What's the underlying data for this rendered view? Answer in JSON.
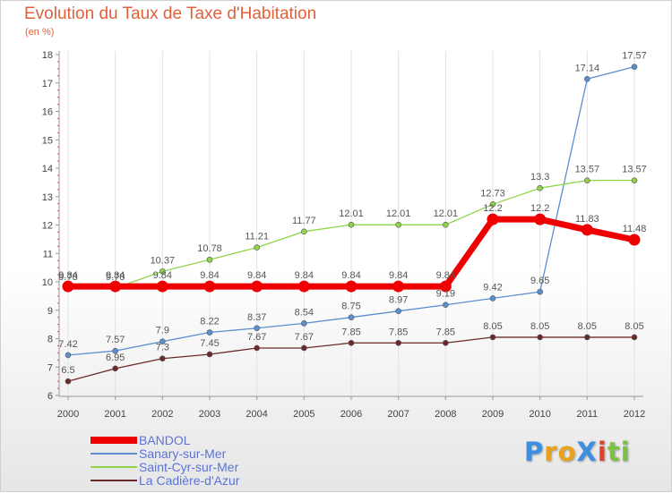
{
  "title": "Evolution du Taux de Taxe d'Habitation",
  "subtitle": "(en %)",
  "logo": {
    "text": "ProXiti",
    "letters": [
      {
        "ch": "P",
        "color": "#3b8ee0"
      },
      {
        "ch": "r",
        "color": "#e8a21e"
      },
      {
        "ch": "o",
        "color": "#e8a21e"
      },
      {
        "ch": "X",
        "color": "#3b8ee0"
      },
      {
        "ch": "i",
        "color": "#e2402c"
      },
      {
        "ch": "t",
        "color": "#7cc242"
      },
      {
        "ch": "i",
        "color": "#7cc242"
      }
    ]
  },
  "chart_data": {
    "type": "line",
    "title": "Evolution du Taux de Taxe d'Habitation",
    "ylabel": "(en %)",
    "x": [
      "2000",
      "2001",
      "2002",
      "2003",
      "2004",
      "2005",
      "2006",
      "2007",
      "2008",
      "2009",
      "2010",
      "2011",
      "2012"
    ],
    "ylim": [
      6,
      18
    ],
    "yticks": [
      "6",
      "7",
      "8",
      "9",
      "10",
      "11",
      "12",
      "13",
      "14",
      "15",
      "16",
      "17",
      "18"
    ],
    "legend_position": "bottom-left",
    "series": [
      {
        "name": "BANDOL",
        "color": "#ee0000",
        "values": [
          9.84,
          9.84,
          9.84,
          9.84,
          9.84,
          9.84,
          9.84,
          9.84,
          9.84,
          12.2,
          12.2,
          11.83,
          11.48
        ],
        "labels": [
          "9.84",
          "9.84",
          "9.84",
          "9.84",
          "9.84",
          "9.84",
          "9.84",
          "9.84",
          "9.84",
          "12.2",
          "12.2",
          "11.83",
          "11.48"
        ]
      },
      {
        "name": "Sanary-sur-Mer",
        "color": "#5b8fd0",
        "values": [
          7.42,
          7.57,
          7.9,
          8.22,
          8.37,
          8.54,
          8.75,
          8.97,
          9.19,
          9.42,
          9.65,
          17.14,
          17.57
        ],
        "labels": [
          "7.42",
          "7.57",
          "7.9",
          "8.22",
          "8.37",
          "8.54",
          "8.75",
          "8.97",
          "9.19",
          "9.42",
          "9.65",
          "17.14",
          "17.57"
        ]
      },
      {
        "name": "Saint-Cyr-sur-Mer",
        "color": "#8fd44a",
        "values": [
          9.78,
          9.78,
          10.37,
          10.78,
          11.21,
          11.77,
          12.01,
          12.01,
          12.01,
          12.73,
          13.3,
          13.57,
          13.57
        ],
        "labels": [
          "9.78",
          "9.78",
          "10.37",
          "10.78",
          "11.21",
          "11.77",
          "12.01",
          "12.01",
          "12.01",
          "12.73",
          "13.3",
          "13.57",
          "13.57"
        ]
      },
      {
        "name": "La Cadière-d'Azur",
        "color": "#6b2a2a",
        "values": [
          6.5,
          6.95,
          7.3,
          7.45,
          7.67,
          7.67,
          7.85,
          7.85,
          7.85,
          8.05,
          8.05,
          8.05,
          8.05
        ],
        "labels": [
          "6.5",
          "6.95",
          "7.3",
          "7.45",
          "7.67",
          "7.67",
          "7.85",
          "7.85",
          "7.85",
          "8.05",
          "8.05",
          "8.05",
          "8.05"
        ]
      }
    ]
  }
}
